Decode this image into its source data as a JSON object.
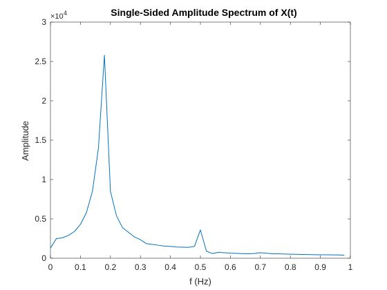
{
  "chart_data": {
    "type": "line",
    "title": "Single-Sided Amplitude Spectrum of X(t)",
    "xlabel": "f (Hz)",
    "ylabel": "Amplitude",
    "xlim": [
      0,
      1
    ],
    "ylim": [
      0,
      30000
    ],
    "y_exponent": {
      "base": "×10",
      "power": "4"
    },
    "x_ticks": [
      0,
      0.1,
      0.2,
      0.3,
      0.4,
      0.5,
      0.6,
      0.7,
      0.8,
      0.9,
      1
    ],
    "x_tick_labels": [
      "0",
      "0.1",
      "0.2",
      "0.3",
      "0.4",
      "0.5",
      "0.6",
      "0.7",
      "0.8",
      "0.9",
      "1"
    ],
    "y_ticks": [
      0,
      5000,
      10000,
      15000,
      20000,
      25000,
      30000
    ],
    "y_tick_labels": [
      "0",
      "0.5",
      "1",
      "1.5",
      "2",
      "2.5",
      "3"
    ],
    "grid": false,
    "line_color": "#0072BD",
    "series": [
      {
        "x": [
          0,
          0.02,
          0.04,
          0.06,
          0.08,
          0.1,
          0.12,
          0.14,
          0.16,
          0.18,
          0.2,
          0.22,
          0.24,
          0.26,
          0.28,
          0.3,
          0.32,
          0.34,
          0.36,
          0.38,
          0.4,
          0.42,
          0.44,
          0.46,
          0.48,
          0.5,
          0.52,
          0.54,
          0.56,
          0.58,
          0.6,
          0.62,
          0.64,
          0.66,
          0.68,
          0.7,
          0.72,
          0.74,
          0.76,
          0.78,
          0.8,
          0.82,
          0.84,
          0.86,
          0.88,
          0.9,
          0.92,
          0.94,
          0.96,
          0.98
        ],
        "y": [
          1300,
          2500,
          2600,
          2900,
          3400,
          4300,
          5800,
          8500,
          14000,
          25800,
          8500,
          5400,
          3900,
          3300,
          2700,
          2350,
          1850,
          1750,
          1650,
          1550,
          1500,
          1430,
          1400,
          1380,
          1500,
          3600,
          900,
          600,
          750,
          700,
          650,
          620,
          580,
          560,
          600,
          700,
          650,
          560,
          560,
          540,
          520,
          500,
          480,
          470,
          450,
          440,
          440,
          430,
          420,
          380
        ]
      }
    ]
  }
}
